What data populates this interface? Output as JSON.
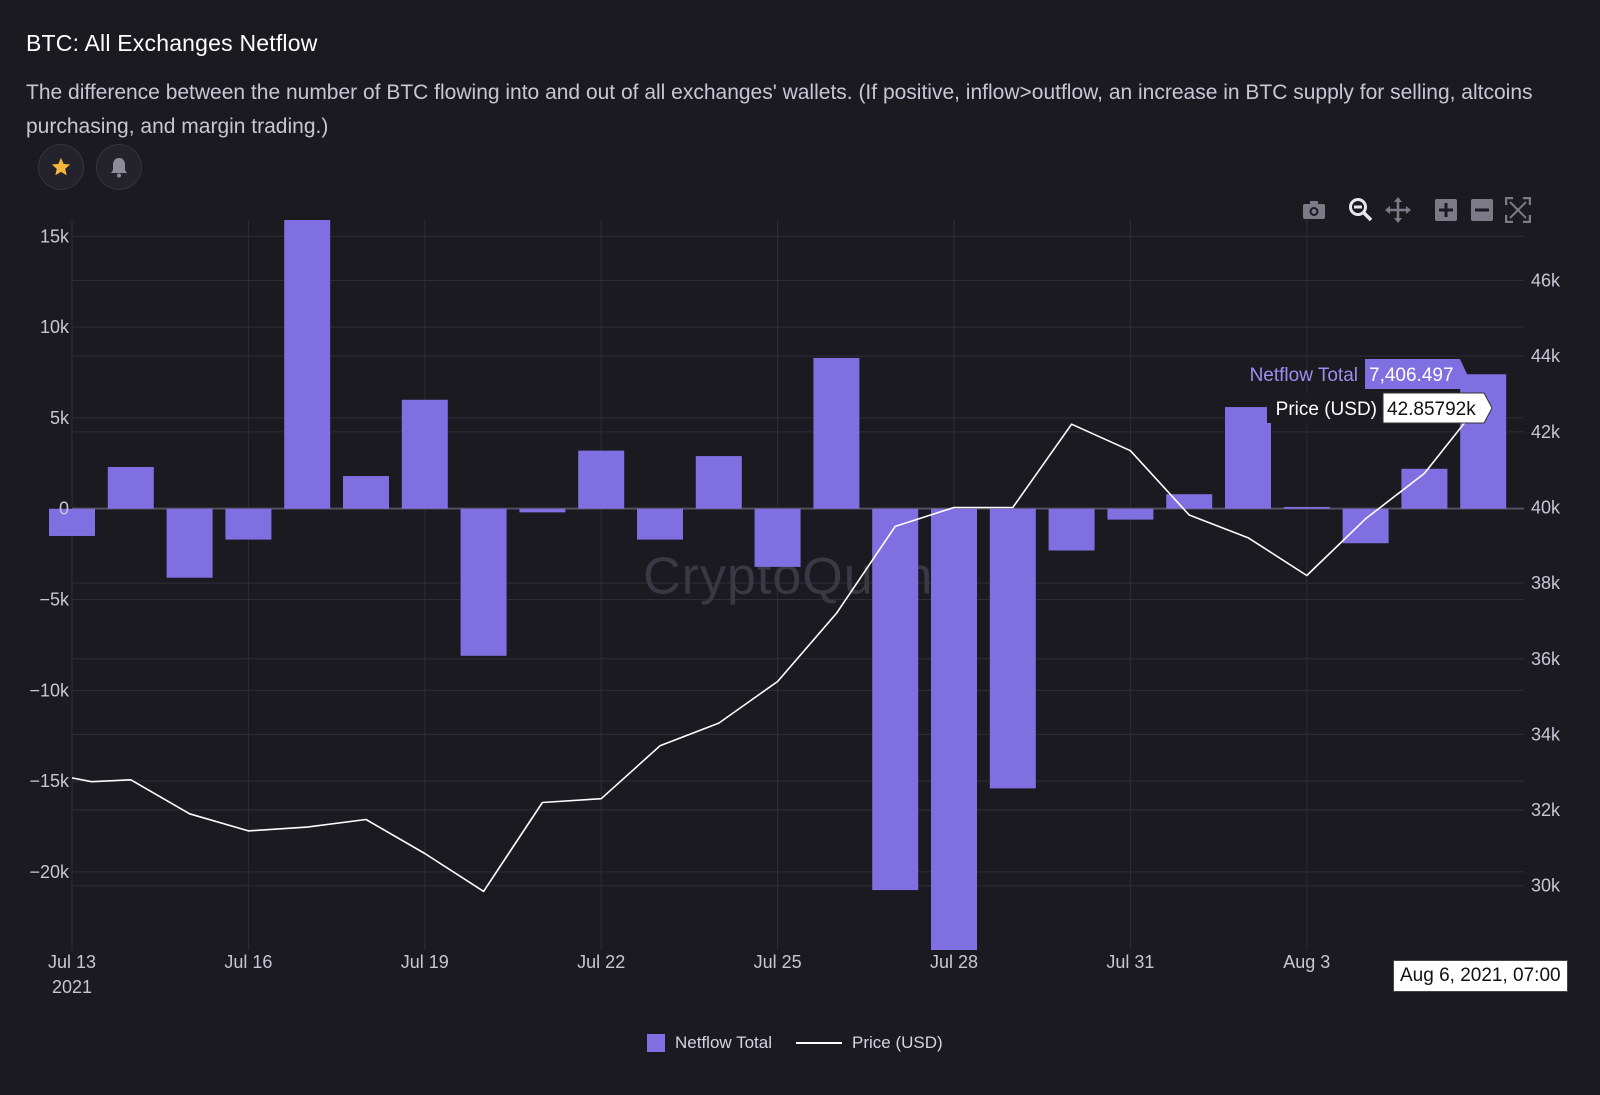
{
  "header": {
    "title": "BTC: All Exchanges Netflow",
    "description": "The difference between the number of BTC flowing into and out of all exchanges' wallets. (If positive, inflow>outflow, an increase in BTC supply for selling, altcoins purchasing, and margin trading.)"
  },
  "actions": {
    "favorite_icon": "star-icon",
    "alert_icon": "bell-icon"
  },
  "toolbar": {
    "icons": [
      "camera-icon",
      "zoom-icon",
      "pan-icon",
      "zoom-in-icon",
      "zoom-out-icon",
      "autoscale-icon"
    ]
  },
  "watermark": "CryptoQuant",
  "hover": {
    "netflow_label": "Netflow Total",
    "netflow_value": "7,406.497",
    "price_label": "Price (USD)",
    "price_value": "42.85792k",
    "date": "Aug 6, 2021, 07:00"
  },
  "legend": {
    "netflow": "Netflow Total",
    "price": "Price (USD)"
  },
  "colors": {
    "background": "#1b1a21",
    "bar": "#7f6fe0",
    "line": "#ffffff",
    "grid": "#2e2d38",
    "star": "#f5b63c"
  },
  "chart_data": {
    "type": "bar",
    "title": "BTC: All Exchanges Netflow",
    "x": [
      "2021-07-13",
      "2021-07-14",
      "2021-07-15",
      "2021-07-16",
      "2021-07-17",
      "2021-07-18",
      "2021-07-19",
      "2021-07-20",
      "2021-07-21",
      "2021-07-22",
      "2021-07-23",
      "2021-07-24",
      "2021-07-25",
      "2021-07-26",
      "2021-07-27",
      "2021-07-28",
      "2021-07-29",
      "2021-07-30",
      "2021-07-31",
      "2021-08-01",
      "2021-08-02",
      "2021-08-03",
      "2021-08-04",
      "2021-08-05",
      "2021-08-06"
    ],
    "x_tick_labels": [
      "Jul 13",
      "Jul 16",
      "Jul 19",
      "Jul 22",
      "Jul 25",
      "Jul 28",
      "Jul 31",
      "Aug 3"
    ],
    "x_tick_dates": [
      "2021-07-13",
      "2021-07-16",
      "2021-07-19",
      "2021-07-22",
      "2021-07-25",
      "2021-07-28",
      "2021-07-31",
      "2021-08-03"
    ],
    "x_year_label": "2021",
    "series": [
      {
        "name": "Netflow Total",
        "type": "bar",
        "axis": "left",
        "values": [
          -1500,
          2300,
          -3800,
          -1700,
          15900,
          1800,
          6000,
          -8100,
          -200,
          3200,
          -1700,
          2900,
          -3200,
          8300,
          -21000,
          -24300,
          -15400,
          -2300,
          -600,
          800,
          5600,
          100,
          -1900,
          2200,
          7406.497
        ]
      },
      {
        "name": "Price (USD)",
        "type": "line",
        "axis": "right",
        "x": [
          "2021-07-13",
          "2021-07-13T08",
          "2021-07-14",
          "2021-07-15",
          "2021-07-16",
          "2021-07-17",
          "2021-07-18",
          "2021-07-19",
          "2021-07-20",
          "2021-07-21",
          "2021-07-22",
          "2021-07-23",
          "2021-07-24",
          "2021-07-25",
          "2021-07-26",
          "2021-07-27",
          "2021-07-28",
          "2021-07-29",
          "2021-07-30",
          "2021-07-31",
          "2021-08-01",
          "2021-08-02",
          "2021-08-03",
          "2021-08-04",
          "2021-08-05",
          "2021-08-06"
        ],
        "values": [
          32850,
          32750,
          32800,
          31900,
          31450,
          31550,
          31750,
          30850,
          29850,
          32200,
          32300,
          33700,
          34300,
          35400,
          37200,
          39500,
          40000,
          40000,
          42200,
          41500,
          39800,
          39200,
          38200,
          39700,
          40900,
          42858
        ]
      }
    ],
    "y_left": {
      "ticks": [
        15000,
        10000,
        5000,
        0,
        -5000,
        -10000,
        -15000,
        -20000
      ],
      "tick_labels": [
        "15k",
        "10k",
        "5k",
        "0",
        "−5k",
        "−10k",
        "−15k",
        "−20k"
      ],
      "range": [
        -24300,
        15900
      ]
    },
    "y_right": {
      "ticks": [
        46000,
        44000,
        42000,
        40000,
        38000,
        36000,
        34000,
        32000,
        30000
      ],
      "tick_labels": [
        "46k",
        "44k",
        "42k",
        "40k",
        "38k",
        "36k",
        "34k",
        "32k",
        "30k"
      ],
      "range": [
        28300,
        47600
      ]
    },
    "grid": true,
    "legend_position": "bottom-center"
  }
}
